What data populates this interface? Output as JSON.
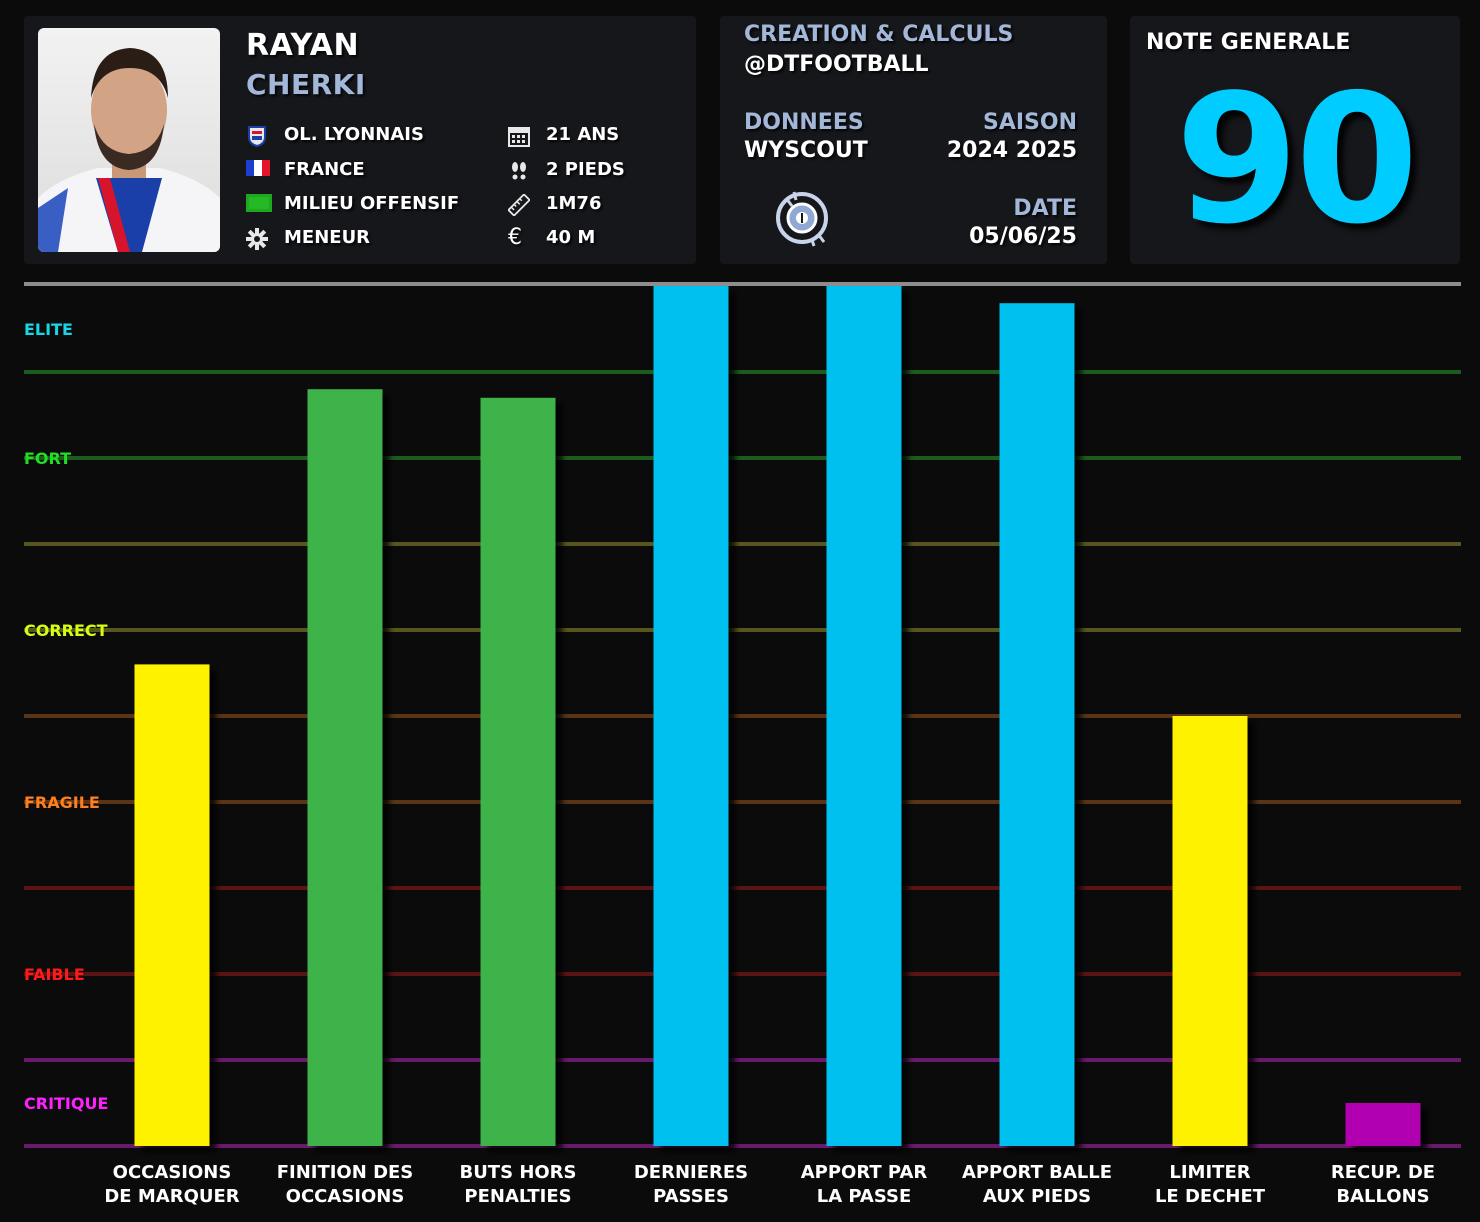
{
  "player": {
    "first_name": "RAYAN",
    "last_name": "CHERKI",
    "club": "OL. LYONNAIS",
    "nationality": "FRANCE",
    "position": "MILIEU OFFENSIF",
    "role": "MENEUR",
    "age": "21 ANS",
    "foot": "2 PIEDS",
    "height": "1M76",
    "value": "40 M"
  },
  "credits": {
    "creation_label": "CREATION & CALCULS",
    "creation_value": "@DTFOOTBALL",
    "data_label": "DONNEES",
    "data_value": "WYSCOUT",
    "season_label": "SAISON",
    "season_value": "2024 2025",
    "date_label": "DATE",
    "date_value": "05/06/25"
  },
  "score": {
    "title": "NOTE GENERALE",
    "value": "90"
  },
  "icons": {
    "club": "club-crest-icon",
    "nationality": "flag-icon",
    "position": "pitch-icon",
    "role": "gear-icon",
    "age": "calendar-icon",
    "foot": "footprints-icon",
    "height": "ruler-icon",
    "value": "euro-icon",
    "brand": "target-logo-icon"
  },
  "colors": {
    "elite": "#00c0f0",
    "fort": "#3cb34a",
    "correct": "#ffef00",
    "fragile": "#ff7f27",
    "faible": "#ff1a1a",
    "critique": "#c000c0",
    "score": "#00ccff",
    "name_secondary": "#a3b7d8"
  },
  "chart_data": {
    "type": "bar",
    "y_scale": "percentile",
    "ylim": [
      0,
      100
    ],
    "levels": [
      {
        "name": "ELITE",
        "color": "#19d6e6",
        "range": [
          90,
          100
        ]
      },
      {
        "name": "FORT",
        "color": "#22dd22",
        "range": [
          70,
          90
        ]
      },
      {
        "name": "CORRECT",
        "color": "#d4ff10",
        "range": [
          50,
          70
        ]
      },
      {
        "name": "FRAGILE",
        "color": "#ff7f1f",
        "range": [
          30,
          50
        ]
      },
      {
        "name": "FAIBLE",
        "color": "#ff1a1a",
        "range": [
          10,
          30
        ]
      },
      {
        "name": "CRITIQUE",
        "color": "#ff20ff",
        "range": [
          0,
          10
        ]
      }
    ],
    "grid": true,
    "categories": [
      "OCCASIONS DE MARQUER",
      "FINITION DES OCCASIONS",
      "BUTS HORS PENALTIES",
      "DERNIERES PASSES",
      "APPORT PAR LA PASSE",
      "APPORT BALLE AUX PIEDS",
      "LIMITER LE DECHET",
      "RECUP. DE BALLONS"
    ],
    "category_lines": [
      [
        "OCCASIONS",
        "DE MARQUER"
      ],
      [
        "FINITION DES",
        "OCCASIONS"
      ],
      [
        "BUTS HORS",
        "PENALTIES"
      ],
      [
        "DERNIERES",
        "PASSES"
      ],
      [
        "APPORT PAR",
        "LA PASSE"
      ],
      [
        "APPORT BALLE",
        "AUX PIEDS"
      ],
      [
        "LIMITER",
        "LE DECHET"
      ],
      [
        "RECUP. DE",
        "BALLONS"
      ]
    ],
    "values": [
      56,
      88,
      87,
      100,
      100,
      98,
      50,
      5
    ],
    "bar_colors": [
      "#fff200",
      "#3cb34a",
      "#3cb34a",
      "#00c0f0",
      "#00c0f0",
      "#00c0f0",
      "#fff200",
      "#b000b0"
    ]
  }
}
